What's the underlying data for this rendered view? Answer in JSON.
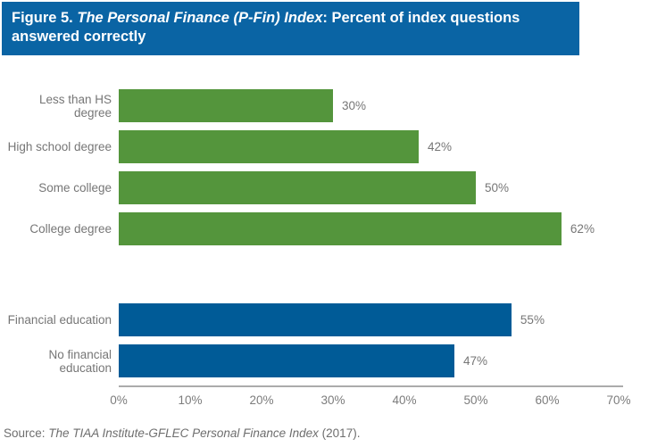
{
  "title": {
    "prefix": "Figure 5. ",
    "italic": "The Personal Finance (P-Fin) Index",
    "suffix": ": Percent of index questions answered correctly"
  },
  "source": {
    "prefix": "Source: ",
    "italic": "The TIAA Institute-GFLEC Personal Finance Index",
    "suffix": " (2017)."
  },
  "colors": {
    "title_bar_bg": "#0A64A4",
    "title_text": "#FFFFFF",
    "education_bar_green": "#54953C",
    "financial_education_bar_blue": "#005B97",
    "label_text": "#767676",
    "axis_line": "#ABABAB"
  },
  "chart_data": {
    "type": "bar",
    "orientation": "horizontal",
    "title": "Figure 5. The Personal Finance (P-Fin) Index: Percent of index questions answered correctly",
    "xlabel": "",
    "ylabel": "",
    "xlim": [
      0,
      70
    ],
    "xmax": 70,
    "grid": false,
    "legend": "none",
    "ticks": [
      "0%",
      "10%",
      "20%",
      "30%",
      "40%",
      "50%",
      "60%",
      "70%"
    ],
    "bars": [
      {
        "label": "Less than HS degree",
        "value": 30,
        "display": "30%",
        "group": "education",
        "color": "#54953C"
      },
      {
        "label": "High school degree",
        "value": 42,
        "display": "42%",
        "group": "education",
        "color": "#54953C"
      },
      {
        "label": "Some college",
        "value": 50,
        "display": "50%",
        "group": "education",
        "color": "#54953C"
      },
      {
        "label": "College degree",
        "value": 62,
        "display": "62%",
        "group": "education",
        "color": "#54953C"
      },
      {
        "label": "Financial education",
        "value": 55,
        "display": "55%",
        "group": "financial-education",
        "color": "#005B97"
      },
      {
        "label": "No financial education",
        "value": 47,
        "display": "47%",
        "group": "financial-education",
        "color": "#005B97"
      }
    ]
  }
}
